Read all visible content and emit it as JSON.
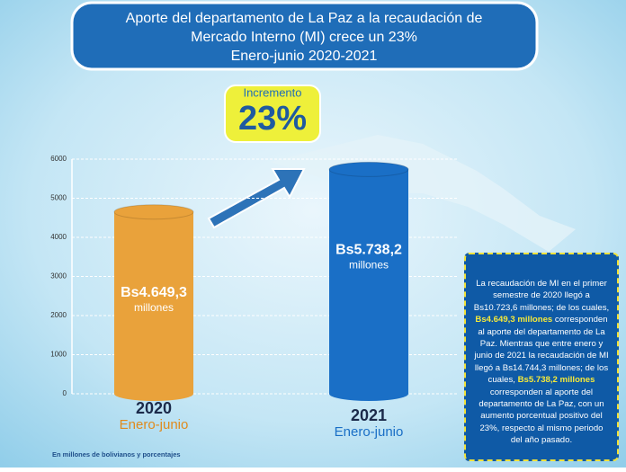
{
  "title_lines": [
    "Aporte del departamento de La Paz a la recaudación de",
    "Mercado Interno (MI) crece un 23%",
    "Enero-junio 2020-2021"
  ],
  "badge": {
    "label": "Incremento",
    "value": "23%"
  },
  "chart_data": {
    "type": "bar",
    "categories": [
      "2020",
      "2021"
    ],
    "period_labels": [
      "Enero-junio",
      "Enero-junio"
    ],
    "values": [
      4649.3,
      5738.2
    ],
    "value_labels": [
      "Bs4.649,3",
      "Bs5.738,2"
    ],
    "value_units": [
      "millones",
      "millones"
    ],
    "colors": [
      "#e9a23b",
      "#1a6fc6"
    ],
    "value_label_colors": [
      "#ffffff",
      "#ffffff"
    ],
    "period_colors": [
      "#e08a1c",
      "#1a6fc6"
    ],
    "ylim": [
      0,
      6000
    ],
    "yticks": [
      0,
      1000,
      2000,
      3000,
      4000,
      5000,
      6000
    ],
    "grid": true
  },
  "note": "En millones de bolivianos y porcentajes",
  "info_box": [
    {
      "text": "La recaudación de MI en el primer semestre de 2020 llegó a Bs10.723,6 millones; de los cuales, "
    },
    {
      "text": "Bs4.649,3 millones",
      "highlight": true
    },
    {
      "text": " corresponden al aporte del departamento de La Paz. Mientras que entre enero y junio de 2021 la recaudación de MI llegó a Bs14.744,3 millones; de los cuales, "
    },
    {
      "text": "Bs5.738,2 millones",
      "highlight": true
    },
    {
      "text": " corresponden al aporte del departamento de La Paz, con un aumento porcentual positivo del 23%, respecto al mismo periodo del año pasado."
    }
  ]
}
